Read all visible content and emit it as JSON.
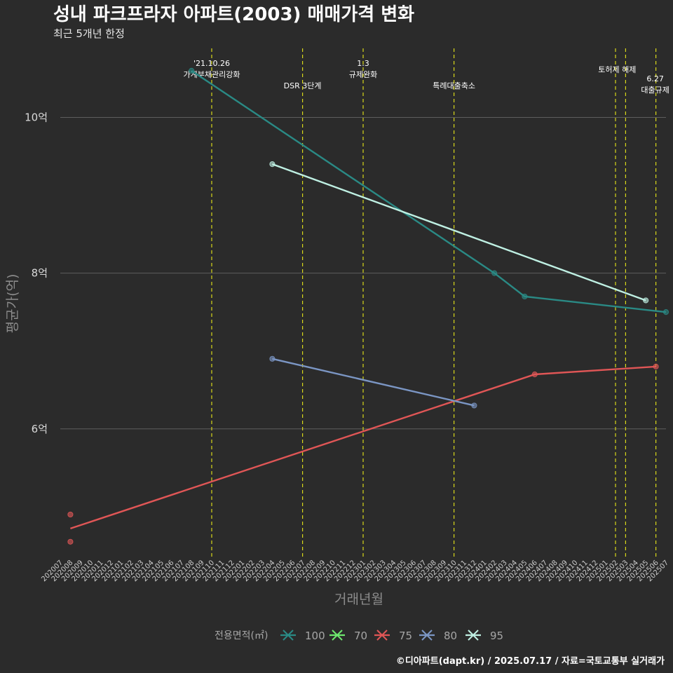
{
  "chart_data": {
    "type": "line",
    "title": "성내 파크프라자 아파트(2003) 매매가격 변화",
    "subtitle": "최근 5개년 한정",
    "xlabel": "거래년월",
    "ylabel": "평균가(억)",
    "caption": "©디아파트(dapt.kr) / 2025.07.17 / 자료=국토교통부 실거래가",
    "ylim": [
      4.35,
      10.95
    ],
    "yticks": [
      {
        "value": 6,
        "label": "6억"
      },
      {
        "value": 8,
        "label": "8억"
      },
      {
        "value": 10,
        "label": "10억"
      }
    ],
    "x": [
      "202007",
      "202008",
      "202009",
      "202010",
      "202011",
      "202012",
      "202101",
      "202102",
      "202103",
      "202104",
      "202105",
      "202106",
      "202107",
      "202108",
      "202109",
      "202110",
      "202111",
      "202112",
      "202201",
      "202202",
      "202203",
      "202204",
      "202205",
      "202206",
      "202207",
      "202208",
      "202209",
      "202210",
      "202211",
      "202212",
      "202301",
      "202302",
      "202303",
      "202304",
      "202305",
      "202306",
      "202307",
      "202308",
      "202309",
      "202310",
      "202311",
      "202312",
      "202401",
      "202402",
      "202403",
      "202404",
      "202405",
      "202406",
      "202407",
      "202408",
      "202409",
      "202410",
      "202411",
      "202412",
      "202501",
      "202502",
      "202503",
      "202504",
      "202505",
      "202506",
      "202507"
    ],
    "legend_title": "전용면적(㎡)",
    "series": [
      {
        "name": "100",
        "color": "#2a8a85",
        "points": [
          {
            "x": "202108",
            "y": 10.6
          },
          {
            "x": "202402",
            "y": 8.0
          },
          {
            "x": "202405",
            "y": 7.7
          },
          {
            "x": "202507",
            "y": 7.5
          }
        ],
        "fit": [
          {
            "x": "202108",
            "y": 10.6
          },
          {
            "x": "202402",
            "y": 8.0
          },
          {
            "x": "202405",
            "y": 7.7
          },
          {
            "x": "202507",
            "y": 7.5
          }
        ]
      },
      {
        "name": "70",
        "color": "#6ee86e",
        "points": [],
        "fit": []
      },
      {
        "name": "75",
        "color": "#e05656",
        "points": [
          {
            "x": "202008",
            "y": 4.9
          },
          {
            "x": "202008",
            "y": 4.55
          },
          {
            "x": "202406",
            "y": 6.7
          },
          {
            "x": "202506",
            "y": 6.8
          }
        ],
        "fit": [
          {
            "x": "202008",
            "y": 4.72
          },
          {
            "x": "202406",
            "y": 6.7
          },
          {
            "x": "202506",
            "y": 6.8
          }
        ]
      },
      {
        "name": "80",
        "color": "#7b96c4",
        "points": [
          {
            "x": "202204",
            "y": 6.9
          },
          {
            "x": "202312",
            "y": 6.3
          }
        ],
        "fit": [
          {
            "x": "202204",
            "y": 6.9
          },
          {
            "x": "202312",
            "y": 6.3
          }
        ]
      },
      {
        "name": "95",
        "color": "#bff0e3",
        "points": [
          {
            "x": "202204",
            "y": 9.4
          },
          {
            "x": "202505",
            "y": 7.65
          }
        ],
        "fit": [
          {
            "x": "202204",
            "y": 9.4
          },
          {
            "x": "202505",
            "y": 7.65
          }
        ]
      }
    ],
    "events": [
      {
        "x": "202110",
        "lines": [
          "'21.10.26",
          "가계부채관리강화"
        ]
      },
      {
        "x": "202207",
        "lines": [
          "DSR 3단계"
        ]
      },
      {
        "x": "202301",
        "lines": [
          "1.3",
          "규제완화"
        ]
      },
      {
        "x": "202310",
        "lines": [
          "특례대출축소"
        ]
      },
      {
        "x": "202502",
        "lines": []
      },
      {
        "x": "202503",
        "lines": [
          "토허제 해제"
        ]
      },
      {
        "x": "202506",
        "lines": [
          "6.27",
          "대출규제"
        ]
      }
    ]
  }
}
